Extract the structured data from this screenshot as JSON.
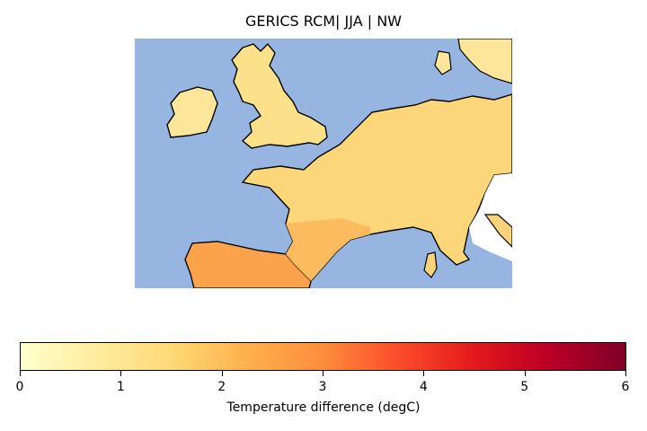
{
  "title": "GERICS RCM| JJA | NW",
  "colorbar": {
    "label": "Temperature difference (degC)",
    "ticks": [
      "0",
      "1",
      "2",
      "3",
      "4",
      "5",
      "6"
    ],
    "range": [
      0,
      6
    ],
    "colormap": "YlOrRd"
  },
  "colors": {
    "sea": "#96b5e0",
    "coastline": "#000000",
    "low": "#ffffcc",
    "high": "#800026"
  }
}
